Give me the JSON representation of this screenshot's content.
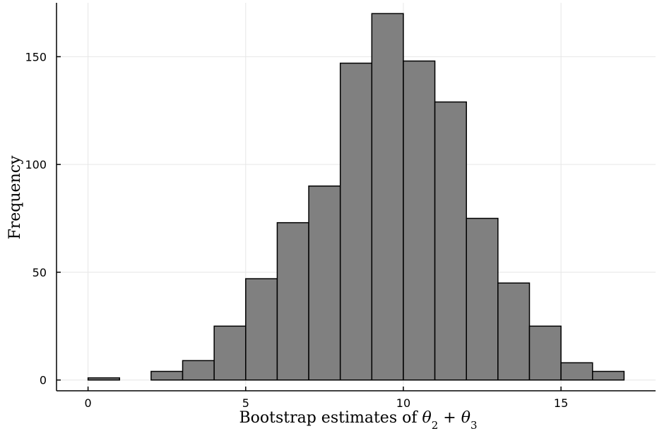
{
  "chart_data": {
    "type": "bar",
    "bin_edges": [
      0,
      1,
      2,
      3,
      4,
      5,
      6,
      7,
      8,
      9,
      10,
      11,
      12,
      13,
      14,
      15,
      16,
      17
    ],
    "values": [
      1,
      0,
      4,
      9,
      25,
      47,
      73,
      90,
      147,
      170,
      148,
      129,
      75,
      45,
      25,
      8,
      4
    ],
    "xlabel": "Bootstrap estimates of θ₂ + θ₃",
    "xlabel_parts": {
      "main": "Bootstrap estimates of ",
      "sym1": "θ",
      "sub1": "2",
      "plus": " + ",
      "sym2": "θ",
      "sub2": "3"
    },
    "ylabel": "Frequency",
    "xlim": [
      -1,
      18
    ],
    "ylim": [
      -5,
      175
    ],
    "xticks": [
      0,
      5,
      10,
      15
    ],
    "yticks": [
      0,
      50,
      100,
      150
    ],
    "grid": true,
    "bar_color": "#808080",
    "edge_color": "#000000"
  }
}
